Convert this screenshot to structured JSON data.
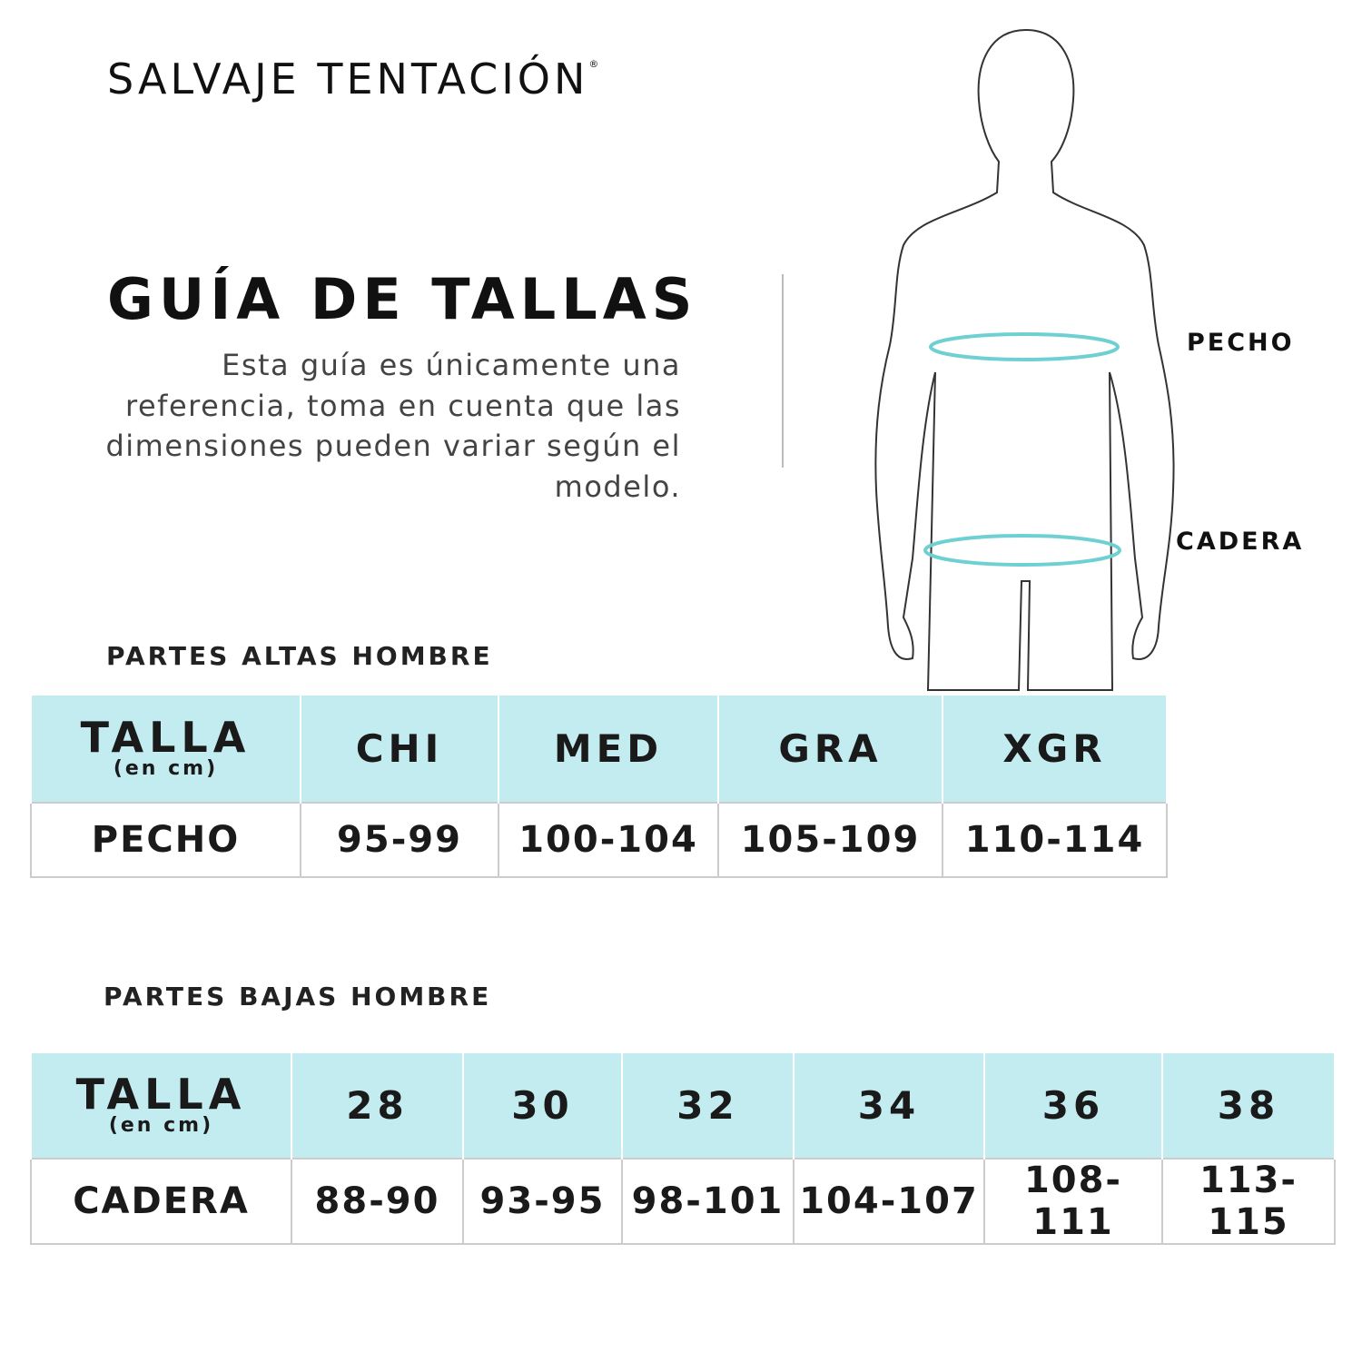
{
  "brand": {
    "name": "SALVAJE TENTACIÓN",
    "mark": "®"
  },
  "title": "GUÍA DE TALLAS",
  "description": "Esta guía es únicamente una referencia, toma en cuenta que las dimensiones pueden variar según el modelo.",
  "figure": {
    "labels": {
      "chest": "PECHO",
      "hip": "CADERA"
    },
    "accent": "#6fd0d3"
  },
  "colors": {
    "header_bg": "#c3ecf1",
    "border": "#cccccc"
  },
  "tops": {
    "section": "PARTES ALTAS HOMBRE",
    "header": {
      "label": "TALLA",
      "unit": "(en cm)",
      "sizes": [
        "CHI",
        "MED",
        "GRA",
        "XGR"
      ]
    },
    "row": {
      "label": "PECHO",
      "values": [
        "95-99",
        "100-104",
        "105-109",
        "110-114"
      ]
    }
  },
  "bottoms": {
    "section": "PARTES BAJAS HOMBRE",
    "header": {
      "label": "TALLA",
      "unit": "(en cm)",
      "sizes": [
        "28",
        "30",
        "32",
        "34",
        "36",
        "38"
      ]
    },
    "row": {
      "label": "CADERA",
      "values": [
        "88-90",
        "93-95",
        "98-101",
        "104-107",
        "108-111",
        "113-115"
      ]
    }
  }
}
